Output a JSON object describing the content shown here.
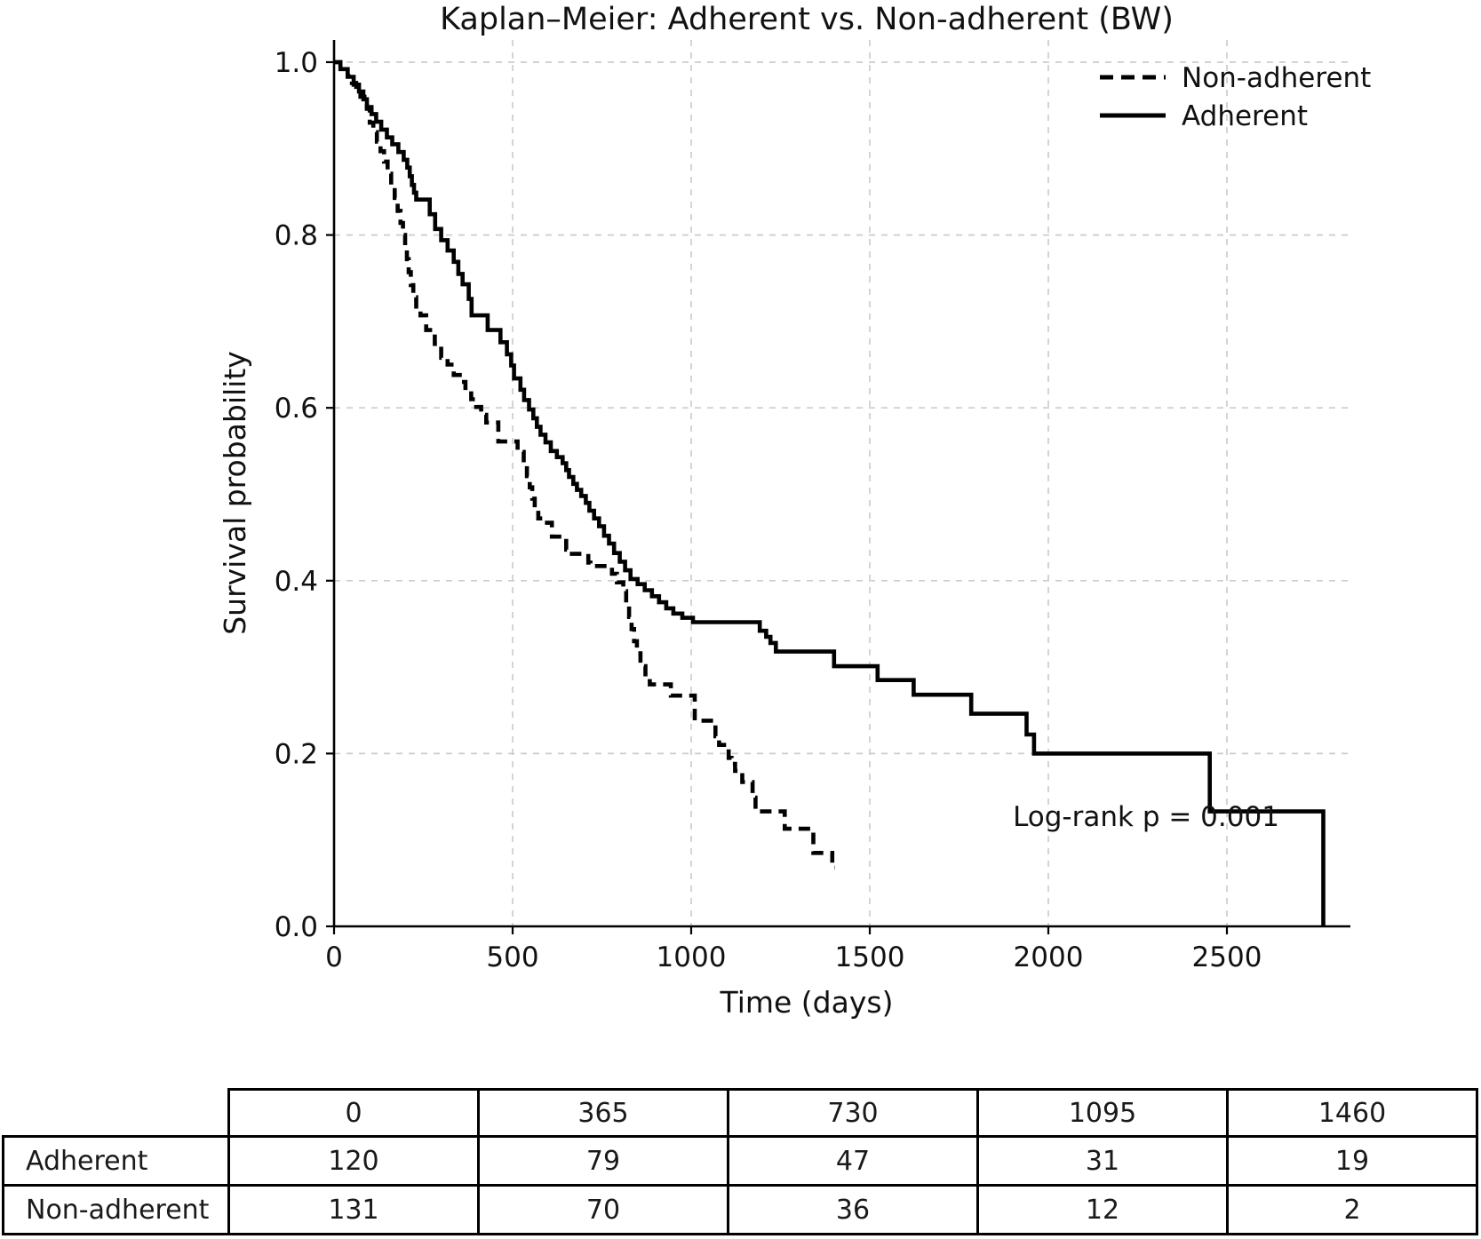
{
  "title": "Kaplan–Meier: Adherent vs. Non-adherent (BW)",
  "axes": {
    "xlabel": "Time (days)",
    "ylabel": "Survival probability",
    "x_ticks": [
      "0",
      "500",
      "1000",
      "1500",
      "2000",
      "2500"
    ],
    "y_ticks": [
      "0.0",
      "0.2",
      "0.4",
      "0.6",
      "0.8",
      "1.0"
    ]
  },
  "annotation": "Log-rank p = 0.001",
  "legend": [
    {
      "label": "Non-adherent",
      "style": "dashed"
    },
    {
      "label": "Adherent",
      "style": "solid"
    }
  ],
  "colors": {
    "curve": "#000000",
    "grid": "#cccccc",
    "text": "#111111",
    "table_border": "#000000"
  },
  "chart_data": {
    "type": "line",
    "subtype": "kaplan-meier-step",
    "title": "Kaplan–Meier: Adherent vs. Non-adherent (BW)",
    "xlabel": "Time (days)",
    "ylabel": "Survival probability",
    "xlim": [
      0,
      2845
    ],
    "ylim": [
      0.0,
      1.026
    ],
    "x_tick_values": [
      0,
      500,
      1000,
      1500,
      2000,
      2500
    ],
    "y_tick_values": [
      0.0,
      0.2,
      0.4,
      0.6,
      0.8,
      1.0
    ],
    "grid": true,
    "legend_position": "upper right",
    "annotation": {
      "text": "Log-rank p = 0.001",
      "x": 2270,
      "y": 0.128
    },
    "series": [
      {
        "name": "Adherent",
        "style": "solid",
        "points": [
          [
            0,
            1.0
          ],
          [
            18,
            0.992
          ],
          [
            38,
            0.983
          ],
          [
            55,
            0.974
          ],
          [
            70,
            0.966
          ],
          [
            82,
            0.957
          ],
          [
            92,
            0.948
          ],
          [
            105,
            0.94
          ],
          [
            118,
            0.931
          ],
          [
            132,
            0.922
          ],
          [
            148,
            0.913
          ],
          [
            163,
            0.905
          ],
          [
            180,
            0.896
          ],
          [
            195,
            0.887
          ],
          [
            205,
            0.878
          ],
          [
            212,
            0.868
          ],
          [
            218,
            0.858
          ],
          [
            224,
            0.849
          ],
          [
            230,
            0.841
          ],
          [
            268,
            0.824
          ],
          [
            283,
            0.807
          ],
          [
            300,
            0.794
          ],
          [
            318,
            0.782
          ],
          [
            335,
            0.769
          ],
          [
            348,
            0.755
          ],
          [
            360,
            0.743
          ],
          [
            377,
            0.726
          ],
          [
            385,
            0.707
          ],
          [
            430,
            0.69
          ],
          [
            466,
            0.676
          ],
          [
            484,
            0.662
          ],
          [
            496,
            0.649
          ],
          [
            504,
            0.634
          ],
          [
            522,
            0.621
          ],
          [
            532,
            0.609
          ],
          [
            546,
            0.598
          ],
          [
            558,
            0.588
          ],
          [
            568,
            0.578
          ],
          [
            578,
            0.569
          ],
          [
            592,
            0.56
          ],
          [
            607,
            0.55
          ],
          [
            624,
            0.543
          ],
          [
            640,
            0.536
          ],
          [
            650,
            0.528
          ],
          [
            658,
            0.52
          ],
          [
            670,
            0.512
          ],
          [
            680,
            0.505
          ],
          [
            692,
            0.498
          ],
          [
            705,
            0.49
          ],
          [
            715,
            0.481
          ],
          [
            728,
            0.472
          ],
          [
            742,
            0.463
          ],
          [
            756,
            0.452
          ],
          [
            770,
            0.443
          ],
          [
            784,
            0.432
          ],
          [
            800,
            0.422
          ],
          [
            815,
            0.412
          ],
          [
            830,
            0.402
          ],
          [
            850,
            0.396
          ],
          [
            870,
            0.389
          ],
          [
            890,
            0.382
          ],
          [
            910,
            0.375
          ],
          [
            930,
            0.368
          ],
          [
            950,
            0.362
          ],
          [
            975,
            0.357
          ],
          [
            1005,
            0.352
          ],
          [
            1192,
            0.342
          ],
          [
            1210,
            0.335
          ],
          [
            1222,
            0.328
          ],
          [
            1237,
            0.318
          ],
          [
            1400,
            0.301
          ],
          [
            1522,
            0.285
          ],
          [
            1623,
            0.268
          ],
          [
            1784,
            0.246
          ],
          [
            1939,
            0.222
          ],
          [
            1960,
            0.2
          ],
          [
            2452,
            0.133
          ],
          [
            2770,
            0.0
          ]
        ],
        "end_time": 2770
      },
      {
        "name": "Non-adherent",
        "style": "dashed",
        "points": [
          [
            0,
            1.0
          ],
          [
            18,
            0.992
          ],
          [
            38,
            0.984
          ],
          [
            50,
            0.976
          ],
          [
            62,
            0.968
          ],
          [
            74,
            0.96
          ],
          [
            85,
            0.953
          ],
          [
            92,
            0.946
          ],
          [
            100,
            0.93
          ],
          [
            110,
            0.919
          ],
          [
            120,
            0.908
          ],
          [
            130,
            0.897
          ],
          [
            140,
            0.885
          ],
          [
            150,
            0.871
          ],
          [
            160,
            0.857
          ],
          [
            170,
            0.843
          ],
          [
            178,
            0.828
          ],
          [
            186,
            0.814
          ],
          [
            193,
            0.8
          ],
          [
            199,
            0.786
          ],
          [
            204,
            0.772
          ],
          [
            209,
            0.757
          ],
          [
            215,
            0.742
          ],
          [
            222,
            0.728
          ],
          [
            230,
            0.714
          ],
          [
            242,
            0.707
          ],
          [
            258,
            0.69
          ],
          [
            282,
            0.674
          ],
          [
            300,
            0.658
          ],
          [
            318,
            0.65
          ],
          [
            335,
            0.638
          ],
          [
            352,
            0.63
          ],
          [
            368,
            0.62
          ],
          [
            384,
            0.61
          ],
          [
            398,
            0.601
          ],
          [
            412,
            0.592
          ],
          [
            426,
            0.583
          ],
          [
            460,
            0.561
          ],
          [
            514,
            0.549
          ],
          [
            531,
            0.535
          ],
          [
            540,
            0.521
          ],
          [
            548,
            0.508
          ],
          [
            555,
            0.495
          ],
          [
            562,
            0.483
          ],
          [
            572,
            0.472
          ],
          [
            577,
            0.467
          ],
          [
            610,
            0.451
          ],
          [
            650,
            0.436
          ],
          [
            658,
            0.431
          ],
          [
            712,
            0.421
          ],
          [
            718,
            0.417
          ],
          [
            778,
            0.408
          ],
          [
            792,
            0.398
          ],
          [
            810,
            0.388
          ],
          [
            818,
            0.372
          ],
          [
            826,
            0.358
          ],
          [
            833,
            0.344
          ],
          [
            840,
            0.33
          ],
          [
            848,
            0.316
          ],
          [
            858,
            0.301
          ],
          [
            872,
            0.289
          ],
          [
            884,
            0.28
          ],
          [
            943,
            0.267
          ],
          [
            1010,
            0.238
          ],
          [
            1068,
            0.22
          ],
          [
            1078,
            0.21
          ],
          [
            1105,
            0.195
          ],
          [
            1113,
            0.188
          ],
          [
            1123,
            0.18
          ],
          [
            1143,
            0.167
          ],
          [
            1172,
            0.149
          ],
          [
            1180,
            0.133
          ],
          [
            1262,
            0.113
          ],
          [
            1342,
            0.085
          ],
          [
            1395,
            0.068
          ]
        ],
        "end_time": 1402
      }
    ]
  },
  "risk_table": {
    "columns": [
      "0",
      "365",
      "730",
      "1095",
      "1460"
    ],
    "rows": [
      {
        "label": "Adherent",
        "values": [
          "120",
          "79",
          "47",
          "31",
          "19"
        ]
      },
      {
        "label": "Non-adherent",
        "values": [
          "131",
          "70",
          "36",
          "12",
          "2"
        ]
      }
    ]
  }
}
